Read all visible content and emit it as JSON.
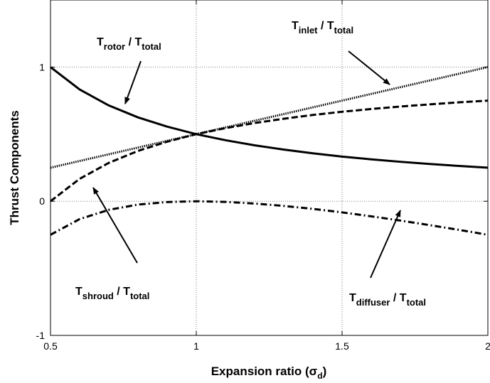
{
  "chart_data": {
    "type": "line",
    "xlabel": "Expansion ratio (σ",
    "xlabel_sub": "d",
    "xlabel_close": ")",
    "ylabel": "Thrust Components",
    "xlim": [
      0.5,
      2
    ],
    "ylim": [
      -1,
      1.5
    ],
    "x_ticks": [
      0.5,
      1,
      1.5,
      2
    ],
    "x_tick_labels": [
      "0.5",
      "1",
      "1.5",
      "2"
    ],
    "y_ticks": [
      -1,
      0,
      1
    ],
    "y_tick_labels": [
      "-1",
      "0",
      "1"
    ],
    "grid": "dotted",
    "legend": "none",
    "x": [
      0.5,
      0.6,
      0.7,
      0.8,
      0.9,
      1.0,
      1.1,
      1.2,
      1.3,
      1.4,
      1.5,
      1.6,
      1.7,
      1.8,
      1.9,
      2.0
    ],
    "series": [
      {
        "key": "rotor",
        "style": "solid",
        "values": [
          1.0,
          0.833,
          0.714,
          0.625,
          0.556,
          0.5,
          0.455,
          0.417,
          0.385,
          0.357,
          0.333,
          0.3125,
          0.294,
          0.278,
          0.263,
          0.25
        ]
      },
      {
        "key": "inlet",
        "style": "dotted",
        "values": [
          0.25,
          0.3,
          0.35,
          0.4,
          0.45,
          0.5,
          0.55,
          0.6,
          0.65,
          0.7,
          0.75,
          0.8,
          0.85,
          0.9,
          0.95,
          1.0
        ]
      },
      {
        "key": "shroud",
        "style": "dashed",
        "values": [
          0.0,
          0.167,
          0.286,
          0.375,
          0.444,
          0.5,
          0.545,
          0.583,
          0.615,
          0.643,
          0.667,
          0.6875,
          0.706,
          0.722,
          0.737,
          0.75
        ]
      },
      {
        "key": "diffuser",
        "style": "dashdot",
        "values": [
          -0.25,
          -0.133,
          -0.064,
          -0.025,
          -0.006,
          0.0,
          -0.005,
          -0.017,
          -0.035,
          -0.057,
          -0.083,
          -0.1125,
          -0.144,
          -0.178,
          -0.213,
          -0.25
        ]
      }
    ],
    "annotations": [
      {
        "key": "rotor",
        "T": "T",
        "sub1": "rotor",
        "sep": " / T",
        "sub2": "total"
      },
      {
        "key": "inlet",
        "T": "T",
        "sub1": "inlet",
        "sep": " / T",
        "sub2": "total"
      },
      {
        "key": "shroud",
        "T": "T",
        "sub1": "shroud",
        "sep": " / T",
        "sub2": "total"
      },
      {
        "key": "diffuser",
        "T": "T",
        "sub1": "diffuser",
        "sep": " / T",
        "sub2": "total"
      }
    ],
    "colors": {
      "line": "#000000",
      "grid": "#808080",
      "axes": "#000000",
      "background": "#ffffff"
    }
  }
}
